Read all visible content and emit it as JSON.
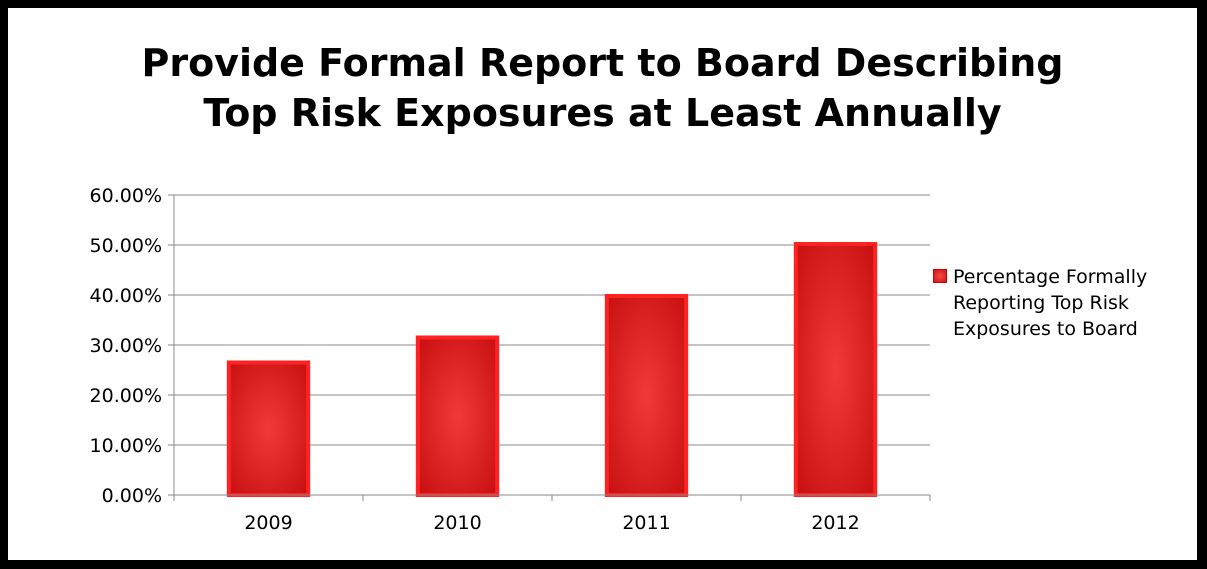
{
  "chart_data": {
    "type": "bar",
    "title_lines": [
      "Provide Formal Report to Board Describing",
      "Top Risk Exposures at Least Annually"
    ],
    "categories": [
      "2009",
      "2010",
      "2011",
      "2012"
    ],
    "series": [
      {
        "name": "Percentage Formally Reporting Top Risk Exposures to Board",
        "values": [
          26.5,
          31.5,
          39.8,
          50.2
        ]
      }
    ],
    "y_ticks": [
      "0.00%",
      "10.00%",
      "20.00%",
      "30.00%",
      "40.00%",
      "50.00%",
      "60.00%"
    ],
    "ylim": [
      0,
      60
    ],
    "grid": true,
    "legend_position": "right",
    "bar_color": "#e02020"
  }
}
